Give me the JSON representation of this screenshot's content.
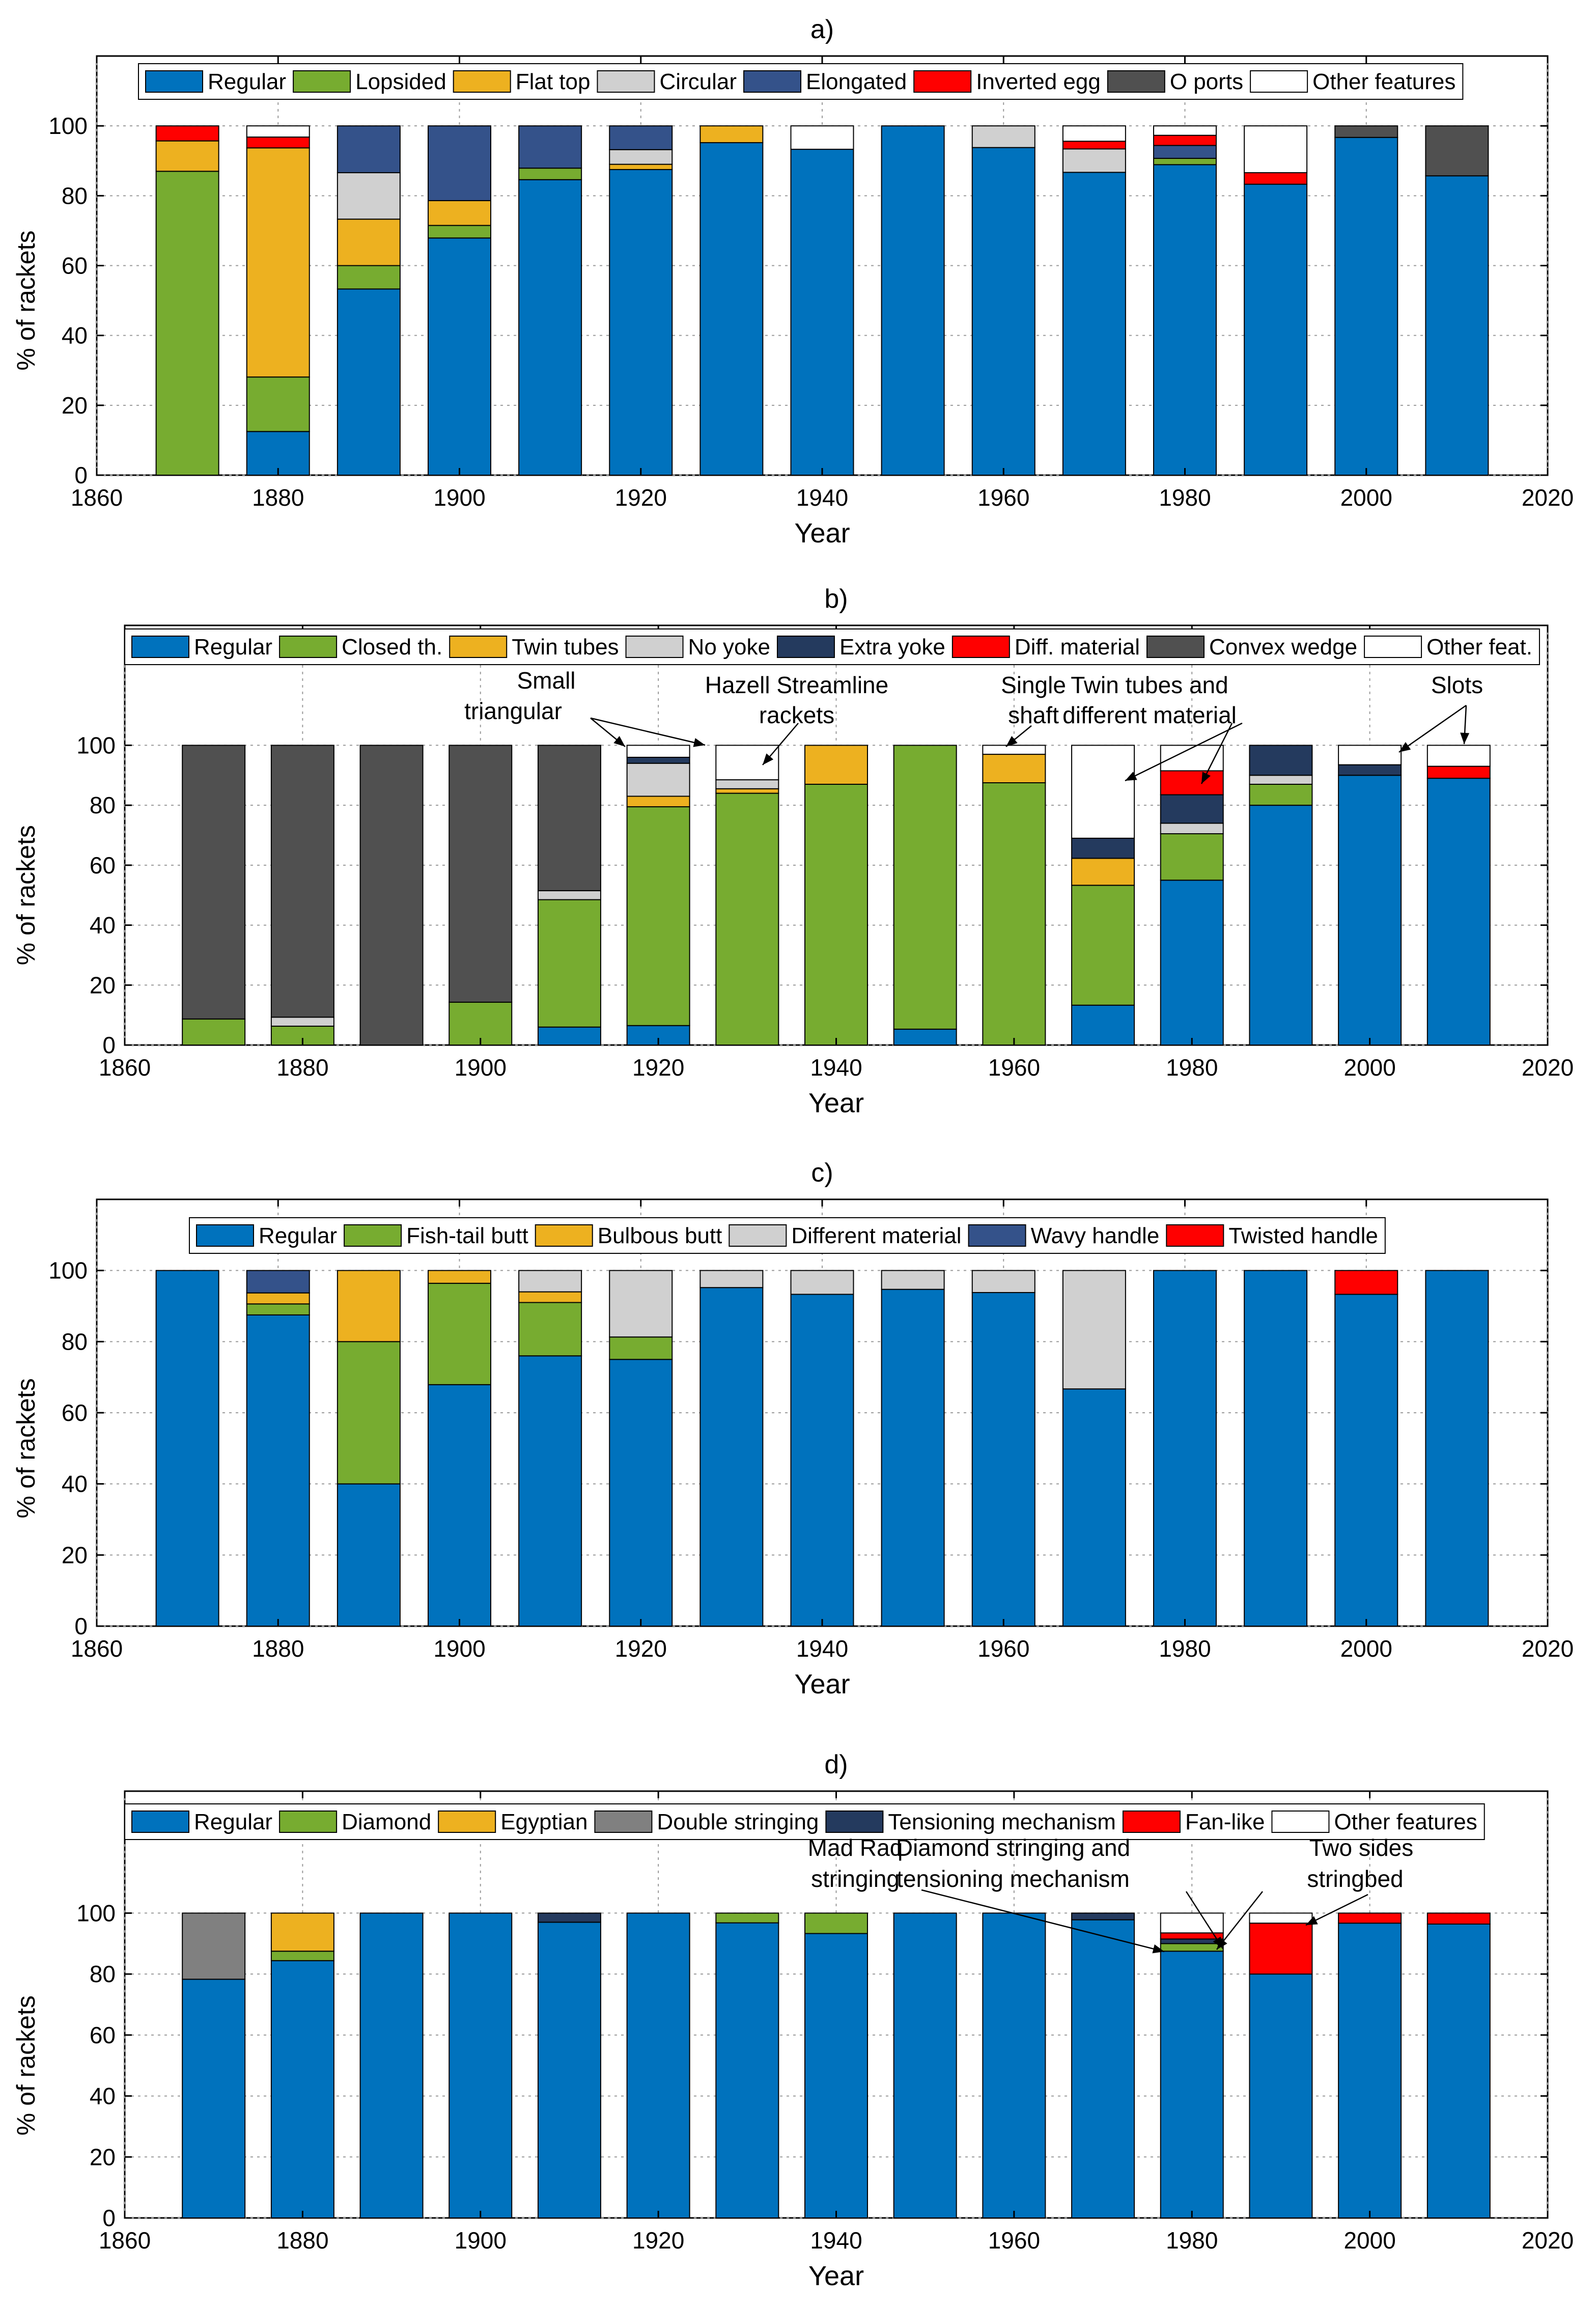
{
  "chart_data": [
    {
      "type": "bar",
      "stacked": true,
      "title": "a)",
      "xlabel": "Year",
      "ylabel": "% of rackets",
      "xlim": [
        1860,
        2020
      ],
      "xticks": [
        "1860",
        "1880",
        "1900",
        "1920",
        "1940",
        "1960",
        "1980",
        "2000",
        "2020"
      ],
      "ylim": [
        0,
        120
      ],
      "yticks": [
        "0",
        "20",
        "40",
        "60",
        "80",
        "100"
      ],
      "grid": true,
      "legend": "top",
      "x": [
        1870,
        1880,
        1890,
        1900,
        1910,
        1920,
        1930,
        1940,
        1950,
        1960,
        1970,
        1980,
        1990,
        2000,
        2010
      ],
      "series": [
        {
          "name": "Regular",
          "color": "#0072BD",
          "values": [
            0,
            12.5,
            53.3,
            67.9,
            84.6,
            87.5,
            95.2,
            93.3,
            100,
            93.8,
            86.7,
            88.9,
            83.3,
            96.7,
            85.7
          ]
        },
        {
          "name": "Lopsided",
          "color": "#77AC30",
          "values": [
            87,
            15.6,
            6.7,
            3.6,
            3.3,
            0,
            0,
            0,
            0,
            0,
            0,
            1.8,
            0,
            0,
            0
          ]
        },
        {
          "name": "Flat top",
          "color": "#EDB120",
          "values": [
            8.7,
            65.6,
            13.3,
            7.1,
            0,
            1.5,
            4.8,
            0,
            0,
            0,
            0,
            0,
            0,
            0,
            0
          ]
        },
        {
          "name": "Circular",
          "color": "#D0D0D0",
          "values": [
            0,
            0,
            13.3,
            0,
            0,
            4.2,
            0,
            0,
            0,
            6.2,
            6.7,
            0,
            0,
            0,
            0
          ]
        },
        {
          "name": "Elongated",
          "color": "#34528A",
          "values": [
            0,
            0,
            13.4,
            21.4,
            12.1,
            6.8,
            0,
            0,
            0,
            0,
            0,
            3.7,
            0,
            0,
            0
          ]
        },
        {
          "name": "Inverted egg",
          "color": "#FF0000",
          "values": [
            4.3,
            3.1,
            0,
            0,
            0,
            0,
            0,
            0,
            0,
            0,
            2.2,
            2.9,
            3.3,
            0,
            0
          ]
        },
        {
          "name": "O ports",
          "color": "#505050",
          "values": [
            0,
            0,
            0,
            0,
            0,
            0,
            0,
            0,
            0,
            0,
            0,
            0,
            0,
            3.3,
            14.3
          ]
        },
        {
          "name": "Other features",
          "color": "#FFFFFF",
          "values": [
            0,
            3.2,
            0,
            0,
            0,
            0,
            0,
            6.7,
            0,
            0,
            4.4,
            2.7,
            13.4,
            0,
            0
          ]
        }
      ],
      "annotations": []
    },
    {
      "type": "bar",
      "stacked": true,
      "title": "b)",
      "xlabel": "Year",
      "ylabel": "% of rackets",
      "xlim": [
        1860,
        2020
      ],
      "xticks": [
        "1860",
        "1880",
        "1900",
        "1920",
        "1940",
        "1960",
        "1980",
        "2000",
        "2020"
      ],
      "ylim": [
        0,
        140
      ],
      "yticks": [
        "0",
        "20",
        "40",
        "60",
        "80",
        "100"
      ],
      "grid": true,
      "legend": "top",
      "x": [
        1870,
        1880,
        1890,
        1900,
        1910,
        1920,
        1930,
        1940,
        1950,
        1960,
        1970,
        1980,
        1990,
        2000,
        2010
      ],
      "series": [
        {
          "name": "Regular",
          "color": "#0072BD",
          "values": [
            0,
            0,
            0,
            0,
            6,
            6.5,
            0,
            0,
            5.3,
            0,
            13.3,
            55,
            80,
            90,
            89
          ]
        },
        {
          "name": "Closed th.",
          "color": "#77AC30",
          "values": [
            8.7,
            6.3,
            0,
            14.3,
            42.5,
            73,
            84,
            87,
            94.7,
            87.5,
            40,
            15.5,
            7,
            0,
            0
          ]
        },
        {
          "name": "Twin tubes",
          "color": "#EDB120",
          "values": [
            0,
            0,
            0,
            0,
            0,
            3.5,
            1.5,
            13,
            0,
            9.5,
            9,
            0,
            0,
            0,
            0
          ]
        },
        {
          "name": "No yoke",
          "color": "#D0D0D0",
          "values": [
            0,
            3,
            0,
            0,
            3,
            11,
            3,
            0,
            0,
            0,
            0,
            3.5,
            3,
            0,
            0
          ]
        },
        {
          "name": "Extra yoke",
          "color": "#243A5E",
          "values": [
            0,
            0,
            0,
            0,
            0,
            2,
            0,
            0,
            0,
            0,
            6.7,
            9.5,
            10,
            3.5,
            0
          ]
        },
        {
          "name": "Diff. material",
          "color": "#FF0000",
          "values": [
            0,
            0,
            0,
            0,
            0,
            0,
            0,
            0,
            0,
            0,
            0,
            8,
            0,
            0,
            4
          ]
        },
        {
          "name": "Convex wedge",
          "color": "#505050",
          "values": [
            91.3,
            90.7,
            100,
            85.7,
            48.5,
            0,
            0,
            0,
            0,
            0,
            0,
            0,
            0,
            0,
            0
          ]
        },
        {
          "name": "Other feat.",
          "color": "#FFFFFF",
          "values": [
            0,
            0,
            0,
            0,
            0,
            4,
            11.5,
            0,
            0,
            3,
            31,
            8.5,
            0,
            6.5,
            7
          ]
        }
      ],
      "annotations": [
        "Small triangular",
        "Hazell Streamline rackets",
        "Single shaft",
        "Twin tubes and different material",
        "Slots"
      ]
    },
    {
      "type": "bar",
      "stacked": true,
      "title": "c)",
      "xlabel": "Year",
      "ylabel": "% of rackets",
      "xlim": [
        1860,
        2020
      ],
      "xticks": [
        "1860",
        "1880",
        "1900",
        "1920",
        "1940",
        "1960",
        "1980",
        "2000",
        "2020"
      ],
      "ylim": [
        0,
        120
      ],
      "yticks": [
        "0",
        "20",
        "40",
        "60",
        "80",
        "100"
      ],
      "grid": true,
      "legend": "top",
      "x": [
        1870,
        1880,
        1890,
        1900,
        1910,
        1920,
        1930,
        1940,
        1950,
        1960,
        1970,
        1980,
        1990,
        2000,
        2010
      ],
      "series": [
        {
          "name": "Regular",
          "color": "#0072BD",
          "values": [
            100,
            87.5,
            40,
            67.9,
            76,
            75,
            95.2,
            93.3,
            94.7,
            93.8,
            66.7,
            100,
            100,
            93.3,
            100
          ]
        },
        {
          "name": "Fish-tail butt",
          "color": "#77AC30",
          "values": [
            0,
            3.1,
            40,
            28.5,
            15,
            6.3,
            0,
            0,
            0,
            0,
            0,
            0,
            0,
            0,
            0
          ]
        },
        {
          "name": "Bulbous butt",
          "color": "#EDB120",
          "values": [
            0,
            3.1,
            20,
            3.6,
            3,
            0,
            0,
            0,
            0,
            0,
            0,
            0,
            0,
            0,
            0
          ]
        },
        {
          "name": "Different material",
          "color": "#D0D0D0",
          "values": [
            0,
            0,
            0,
            0,
            6,
            18.7,
            4.8,
            6.7,
            5.3,
            6.2,
            33.3,
            0,
            0,
            0,
            0
          ]
        },
        {
          "name": "Wavy handle",
          "color": "#34528A",
          "values": [
            0,
            6.3,
            0,
            0,
            0,
            0,
            0,
            0,
            0,
            0,
            0,
            0,
            0,
            0,
            0
          ]
        },
        {
          "name": "Twisted handle",
          "color": "#FF0000",
          "values": [
            0,
            0,
            0,
            0,
            0,
            0,
            0,
            0,
            0,
            0,
            0,
            0,
            0,
            6.7,
            0
          ]
        }
      ],
      "annotations": []
    },
    {
      "type": "bar",
      "stacked": true,
      "title": "d)",
      "xlabel": "Year",
      "ylabel": "% of rackets",
      "xlim": [
        1860,
        2020
      ],
      "xticks": [
        "1860",
        "1880",
        "1900",
        "1920",
        "1940",
        "1960",
        "1980",
        "2000",
        "2020"
      ],
      "ylim": [
        0,
        140
      ],
      "yticks": [
        "0",
        "20",
        "40",
        "60",
        "80",
        "100"
      ],
      "grid": true,
      "legend": "top",
      "x": [
        1870,
        1880,
        1890,
        1900,
        1910,
        1920,
        1930,
        1940,
        1950,
        1960,
        1970,
        1980,
        1990,
        2000,
        2010
      ],
      "series": [
        {
          "name": "Regular",
          "color": "#0072BD",
          "values": [
            78.3,
            84.4,
            100,
            100,
            97,
            100,
            96.8,
            93.3,
            100,
            100,
            97.8,
            87.5,
            80,
            96.7,
            96.4
          ]
        },
        {
          "name": "Diamond",
          "color": "#77AC30",
          "values": [
            0,
            3.1,
            0,
            0,
            0,
            0,
            3.2,
            6.7,
            0,
            0,
            0,
            2.5,
            0,
            0,
            0
          ]
        },
        {
          "name": "Egyptian",
          "color": "#EDB120",
          "values": [
            0,
            12.5,
            0,
            0,
            0,
            0,
            0,
            0,
            0,
            0,
            0,
            0,
            0,
            0,
            0
          ]
        },
        {
          "name": "Double stringing",
          "color": "#808080",
          "values": [
            21.7,
            0,
            0,
            0,
            0,
            0,
            0,
            0,
            0,
            0,
            0,
            0,
            0,
            0,
            0
          ]
        },
        {
          "name": "Tensioning mechanism",
          "color": "#243A5E",
          "values": [
            0,
            0,
            0,
            0,
            3,
            0,
            0,
            0,
            0,
            0,
            2.2,
            1.5,
            0,
            0,
            0
          ]
        },
        {
          "name": "Fan-like",
          "color": "#FF0000",
          "values": [
            0,
            0,
            0,
            0,
            0,
            0,
            0,
            0,
            0,
            0,
            0,
            2,
            16.7,
            3.3,
            3.6
          ]
        },
        {
          "name": "Other features",
          "color": "#FFFFFF",
          "values": [
            0,
            0,
            0,
            0,
            0,
            0,
            0,
            0,
            0,
            0,
            0,
            6.5,
            3.3,
            0,
            0
          ]
        }
      ],
      "annotations": [
        "Mad Raq stringing",
        "Diamond stringing and tensioning mechanism",
        "Two sides stringbed"
      ]
    }
  ]
}
